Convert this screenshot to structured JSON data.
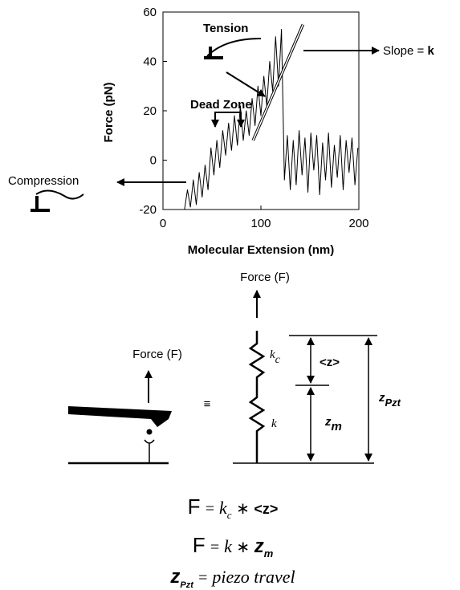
{
  "chart_data": {
    "type": "line",
    "xlabel": "Molecular Extension (nm)",
    "ylabel": "Force (pN)",
    "xlim": [
      0,
      200
    ],
    "xticks": [
      0,
      100,
      200
    ],
    "ylim": [
      -20,
      60
    ],
    "yticks": [
      -20,
      0,
      20,
      40,
      60
    ],
    "series": [
      {
        "color": "#000000",
        "x": [
          22,
          25,
          28,
          31,
          34,
          37,
          40,
          43,
          46,
          49,
          52,
          55,
          58,
          61,
          64,
          67,
          70,
          73,
          76,
          79,
          82,
          85,
          88,
          91,
          94,
          97,
          100,
          103,
          106,
          109,
          112,
          115,
          118,
          121,
          124,
          127,
          130,
          133,
          136,
          139,
          142,
          145,
          148,
          151,
          154,
          157,
          160,
          163,
          166,
          169,
          172,
          175,
          178,
          181,
          184,
          187,
          190,
          193,
          196,
          199
        ],
        "values": [
          -20,
          -12,
          -19,
          -8,
          -18,
          -5,
          -15,
          -2,
          -12,
          5,
          -6,
          8,
          -3,
          12,
          2,
          15,
          4,
          18,
          6,
          22,
          8,
          20,
          10,
          25,
          14,
          30,
          18,
          34,
          22,
          40,
          28,
          50,
          30,
          53,
          -8,
          10,
          -12,
          8,
          -10,
          12,
          -6,
          9,
          -13,
          11,
          -4,
          10,
          -14,
          7,
          -8,
          11,
          -11,
          6,
          -7,
          10,
          -12,
          8,
          -5,
          9,
          -10,
          5
        ]
      },
      {
        "color": "#ffffff",
        "x": [
          92,
          143
        ],
        "values": [
          8,
          55
        ]
      }
    ],
    "annotations": {
      "tension": "Tension",
      "dead_zone": "Dead Zone",
      "slope": "Slope = ",
      "slope_k": "k",
      "compression": "Compression"
    }
  },
  "diagram": {
    "force_top": "Force (F)",
    "force_left": "Force (F)",
    "equiv": "≡",
    "kc": "k",
    "kc_sub": "c",
    "k": "k",
    "z_avg": "<z>",
    "zm": "z",
    "zm_sub": "m",
    "zpzt": "z",
    "zpzt_sub": "Pzt",
    "eq1": [
      "F",
      " = ",
      "k",
      "c",
      " ∗ ",
      "<z>"
    ],
    "eq2": [
      "F",
      " = ",
      "k",
      " ∗ ",
      "z",
      "m"
    ],
    "eq3": [
      "z",
      "Pzt",
      " = ",
      "piezo travel"
    ]
  }
}
